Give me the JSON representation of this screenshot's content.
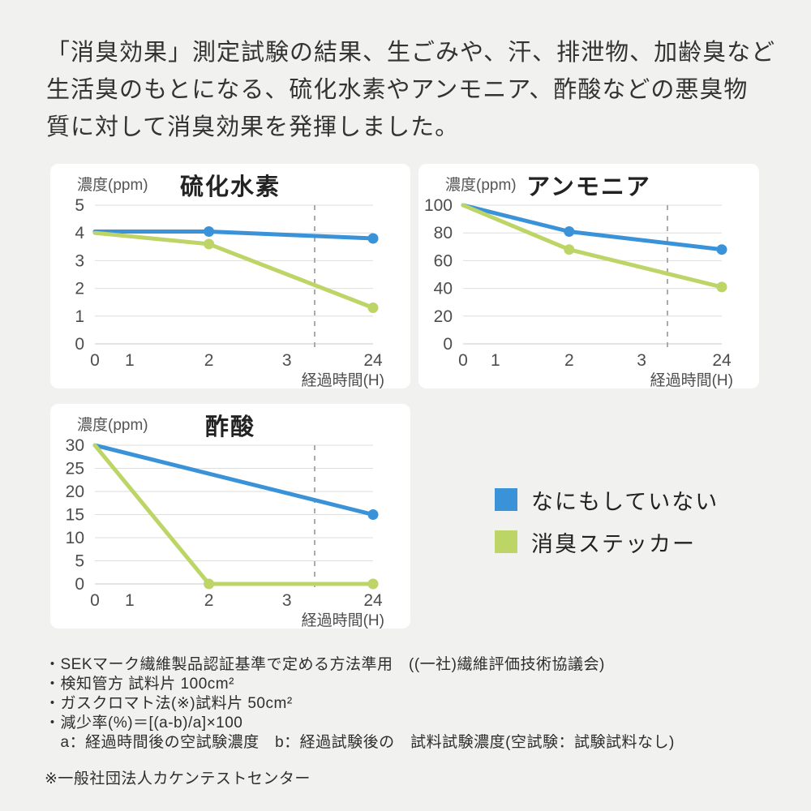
{
  "page": {
    "background": "#f1f1f0",
    "panel_background": "#ffffff",
    "grid_color": "#dedede",
    "axis_color": "#c9c9c9",
    "dashed_guide_color": "#ababab",
    "tick_text_color": "#4d4d4d",
    "title_text_color": "#222222"
  },
  "header": {
    "lines": [
      "「消臭効果」測定試験の結果、生ごみや、汗、排泄物、加齢臭など",
      "生活臭のもとになる、硫化水素やアンモニア、酢酸などの悪臭物",
      "質に対して消臭効果を発揮しました。"
    ]
  },
  "chart_data": [
    {
      "type": "line",
      "title": "硫化水素",
      "ylabel": "濃度(ppm)",
      "xlabel": "経過時間(H)",
      "ylim": [
        0,
        5
      ],
      "y_ticks": [
        0,
        1,
        2,
        3,
        4,
        5
      ],
      "x_tick_labels": [
        "0",
        "1",
        "2",
        "3",
        "24"
      ],
      "x_tick_pos": [
        0,
        0.125,
        0.41,
        0.69,
        1
      ],
      "dashed_guide_x": 0.79,
      "grid": true,
      "legend_position": "none",
      "series": [
        {
          "name": "なにもしていない",
          "color": "#3a93d8",
          "points": [
            {
              "x": "0",
              "y": 4.05,
              "marker": false
            },
            {
              "x": "2",
              "y": 4.05,
              "marker": true
            },
            {
              "x": "24",
              "y": 3.8,
              "marker": true
            }
          ]
        },
        {
          "name": "消臭ステッカー",
          "color": "#bcd566",
          "points": [
            {
              "x": "0",
              "y": 4.0,
              "marker": false
            },
            {
              "x": "2",
              "y": 3.6,
              "marker": true
            },
            {
              "x": "24",
              "y": 1.3,
              "marker": true
            }
          ]
        }
      ]
    },
    {
      "type": "line",
      "title": "アンモニア",
      "ylabel": "濃度(ppm)",
      "xlabel": "経過時間(H)",
      "ylim": [
        0,
        100
      ],
      "y_ticks": [
        0,
        20,
        40,
        60,
        80,
        100
      ],
      "x_tick_labels": [
        "0",
        "1",
        "2",
        "3",
        "24"
      ],
      "x_tick_pos": [
        0,
        0.125,
        0.41,
        0.69,
        1
      ],
      "dashed_guide_x": 0.79,
      "grid": true,
      "legend_position": "none",
      "series": [
        {
          "name": "なにもしていない",
          "color": "#3a93d8",
          "points": [
            {
              "x": "0",
              "y": 100,
              "marker": false
            },
            {
              "x": "2",
              "y": 81,
              "marker": true
            },
            {
              "x": "24",
              "y": 68,
              "marker": true
            }
          ]
        },
        {
          "name": "消臭ステッカー",
          "color": "#bcd566",
          "points": [
            {
              "x": "0",
              "y": 100,
              "marker": false
            },
            {
              "x": "2",
              "y": 68,
              "marker": true
            },
            {
              "x": "24",
              "y": 41,
              "marker": true
            }
          ]
        }
      ]
    },
    {
      "type": "line",
      "title": "酢酸",
      "ylabel": "濃度(ppm)",
      "xlabel": "経過時間(H)",
      "ylim": [
        0,
        30
      ],
      "y_ticks": [
        0,
        5,
        10,
        15,
        20,
        25,
        30
      ],
      "x_tick_labels": [
        "0",
        "1",
        "2",
        "3",
        "24"
      ],
      "x_tick_pos": [
        0,
        0.125,
        0.41,
        0.69,
        1
      ],
      "dashed_guide_x": 0.79,
      "grid": true,
      "legend_position": "none",
      "series": [
        {
          "name": "なにもしていない",
          "color": "#3a93d8",
          "points": [
            {
              "x": "0",
              "y": 30,
              "marker": false
            },
            {
              "x": "24",
              "y": 15,
              "marker": true
            }
          ]
        },
        {
          "name": "消臭ステッカー",
          "color": "#bcd566",
          "points": [
            {
              "x": "0",
              "y": 30,
              "marker": false
            },
            {
              "x": "2",
              "y": 0,
              "marker": true
            },
            {
              "x": "24",
              "y": 0,
              "marker": true
            }
          ]
        }
      ]
    }
  ],
  "legend": {
    "items": [
      {
        "label": "なにもしていない",
        "color": "#3a93d8"
      },
      {
        "label": "消臭ステッカー",
        "color": "#bcd566"
      }
    ]
  },
  "footnotes": {
    "lines": [
      "・SEKマーク繊維製品認証基準で定める方法準用　((一社)繊維評価技術協議会)",
      "・検知管方 試料片 100cm²",
      "・ガスクロマト法(※)試料片 50cm²",
      "・減少率(%)＝[(a-b)/a]×100",
      "　a：経過時間後の空試験濃度　b：経過試験後の　試料試験濃度(空試験：試験試料なし)"
    ],
    "note": "※一般社団法人カケンテストセンター"
  }
}
